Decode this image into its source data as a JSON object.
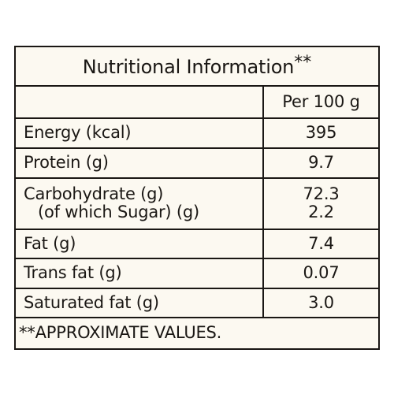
{
  "table": {
    "title": "Nutritional Information",
    "title_marker": "**",
    "column_header": "Per 100 g",
    "rows": [
      {
        "label": "Energy (kcal)",
        "value": "395"
      },
      {
        "label": "Protein (g)",
        "value": "9.7"
      },
      {
        "label": "Carbohydrate (g)",
        "sub_label": "(of which Sugar) (g)",
        "value": "72.3",
        "sub_value": "2.2"
      },
      {
        "label": "Fat (g)",
        "value": "7.4"
      },
      {
        "label": "Trans fat (g)",
        "value": "0.07"
      },
      {
        "label": "Saturated fat (g)",
        "value": "3.0"
      }
    ],
    "footnote": "**APPROXIMATE VALUES."
  },
  "colors": {
    "panel_background": "#fcf9f1",
    "ink": "#1a1714"
  }
}
